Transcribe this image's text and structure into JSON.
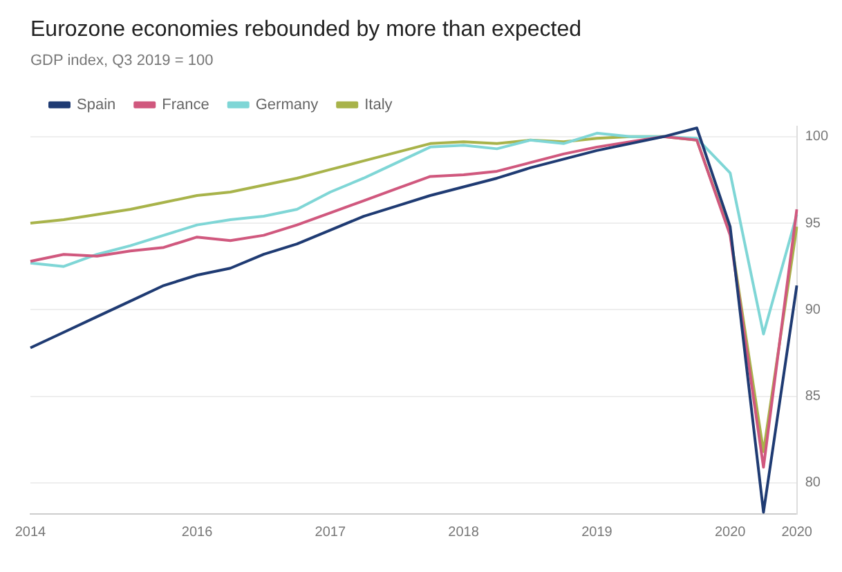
{
  "chart_data": {
    "type": "line",
    "title": "Eurozone economies rebounded by more than expected",
    "subtitle": "GDP index, Q3 2019 = 100",
    "categories": [
      "2014",
      null,
      null,
      null,
      null,
      "2016",
      null,
      null,
      null,
      "2017",
      null,
      null,
      null,
      "2018",
      null,
      null,
      null,
      "2019",
      null,
      null,
      null,
      "2020",
      null,
      "2020"
    ],
    "series": [
      {
        "name": "Spain",
        "color": "#1f3b73",
        "values": [
          87.8,
          88.7,
          89.6,
          90.5,
          91.4,
          92.0,
          92.4,
          93.2,
          93.8,
          94.6,
          95.4,
          96.0,
          96.6,
          97.1,
          97.6,
          98.2,
          98.7,
          99.2,
          99.6,
          100.0,
          100.5,
          94.8,
          78.3,
          91.4
        ]
      },
      {
        "name": "France",
        "color": "#d0587e",
        "values": [
          92.8,
          93.2,
          93.1,
          93.4,
          93.6,
          94.2,
          94.0,
          94.3,
          94.9,
          95.6,
          96.3,
          97.0,
          97.7,
          97.8,
          98.0,
          98.5,
          99.0,
          99.4,
          99.7,
          100.0,
          99.8,
          94.3,
          80.9,
          95.8
        ]
      },
      {
        "name": "Germany",
        "color": "#7fd6d6",
        "values": [
          92.7,
          92.5,
          93.2,
          93.7,
          94.3,
          94.9,
          95.2,
          95.4,
          95.8,
          96.8,
          97.6,
          98.5,
          99.4,
          99.5,
          99.3,
          99.8,
          99.6,
          100.2,
          100.0,
          100.0,
          99.9,
          97.9,
          88.6,
          95.5
        ]
      },
      {
        "name": "Italy",
        "color": "#a8b34a",
        "values": [
          95.0,
          95.2,
          95.5,
          95.8,
          96.2,
          96.6,
          96.8,
          97.2,
          97.6,
          98.1,
          98.6,
          99.1,
          99.6,
          99.7,
          99.6,
          99.8,
          99.7,
          99.9,
          100.0,
          100.0,
          99.8,
          94.4,
          81.8,
          94.8
        ]
      }
    ],
    "ylim": [
      78.2,
      100.6
    ],
    "yticks": [
      80,
      85,
      90,
      95,
      100
    ],
    "grid": "y",
    "legend": "top left",
    "marker": "none",
    "line_style": "solid"
  }
}
